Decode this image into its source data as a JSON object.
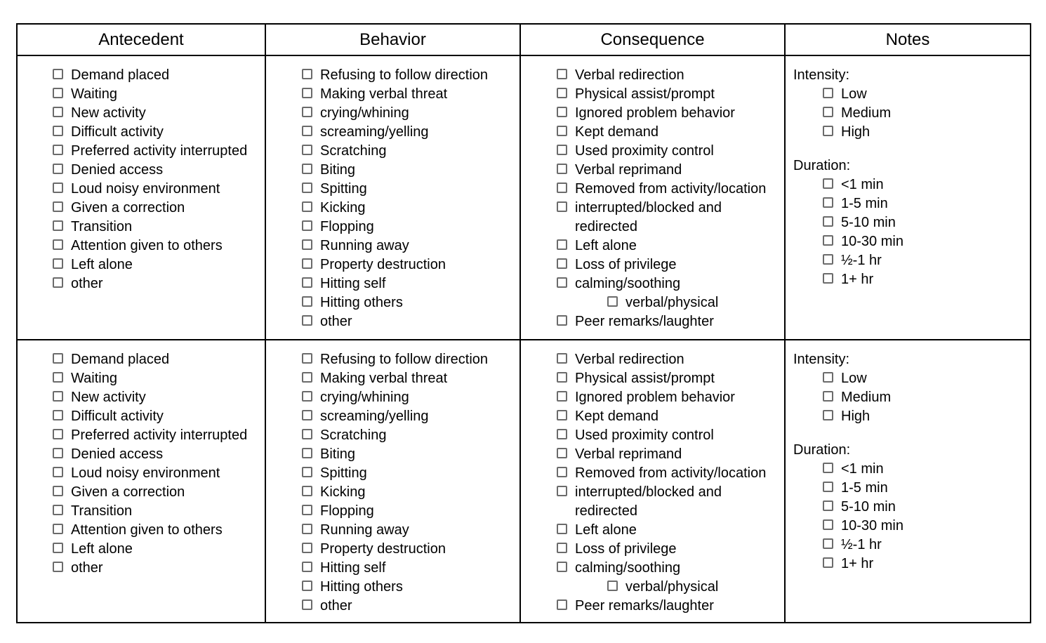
{
  "headers": {
    "antecedent": "Antecedent",
    "behavior": "Behavior",
    "consequence": "Consequence",
    "notes": "Notes"
  },
  "checklists": {
    "antecedent": [
      {
        "label": "Demand placed"
      },
      {
        "label": "Waiting"
      },
      {
        "label": "New activity"
      },
      {
        "label": "Difficult activity"
      },
      {
        "label": "Preferred activity interrupted"
      },
      {
        "label": "Denied access"
      },
      {
        "label": "Loud noisy environment"
      },
      {
        "label": "Given a correction"
      },
      {
        "label": "Transition"
      },
      {
        "label": "Attention given to others"
      },
      {
        "label": "Left alone"
      },
      {
        "label": "other"
      }
    ],
    "behavior": [
      {
        "label": "Refusing to follow direction"
      },
      {
        "label": "Making verbal threat"
      },
      {
        "label": "crying/whining"
      },
      {
        "label": "screaming/yelling"
      },
      {
        "label": "Scratching"
      },
      {
        "label": "Biting"
      },
      {
        "label": "Spitting"
      },
      {
        "label": "Kicking"
      },
      {
        "label": "Flopping"
      },
      {
        "label": "Running away"
      },
      {
        "label": "Property destruction"
      },
      {
        "label": "Hitting self"
      },
      {
        "label": "Hitting others"
      },
      {
        "label": "other"
      }
    ],
    "consequence": [
      {
        "label": "Verbal redirection"
      },
      {
        "label": "Physical assist/prompt"
      },
      {
        "label": "Ignored problem behavior"
      },
      {
        "label": "Kept demand"
      },
      {
        "label": "Used proximity control"
      },
      {
        "label": "Verbal reprimand"
      },
      {
        "label": "Removed from activity/location"
      },
      {
        "label": "interrupted/blocked and redirected"
      },
      {
        "label": "Left alone"
      },
      {
        "label": "Loss of privilege"
      },
      {
        "label": "calming/soothing"
      },
      {
        "label": "verbal/physical",
        "indent": 1
      },
      {
        "label": "Peer remarks/laughter"
      }
    ]
  },
  "notes": {
    "sections": [
      {
        "label": "Intensity:",
        "options": [
          {
            "label": "Low"
          },
          {
            "label": "Medium"
          },
          {
            "label": "High"
          }
        ]
      },
      {
        "label": "Duration:",
        "options": [
          {
            "label": "<1 min"
          },
          {
            "label": "1-5 min"
          },
          {
            "label": "5-10 min"
          },
          {
            "label": "10-30 min"
          },
          {
            "label": "½-1 hr"
          },
          {
            "label": "1+ hr"
          }
        ]
      }
    ]
  },
  "checkbox_state": "unchecked",
  "colors": {
    "table_border": "#000000",
    "checkbox_border": "#6b6b6b",
    "text": "#000000",
    "background": "#ffffff"
  }
}
